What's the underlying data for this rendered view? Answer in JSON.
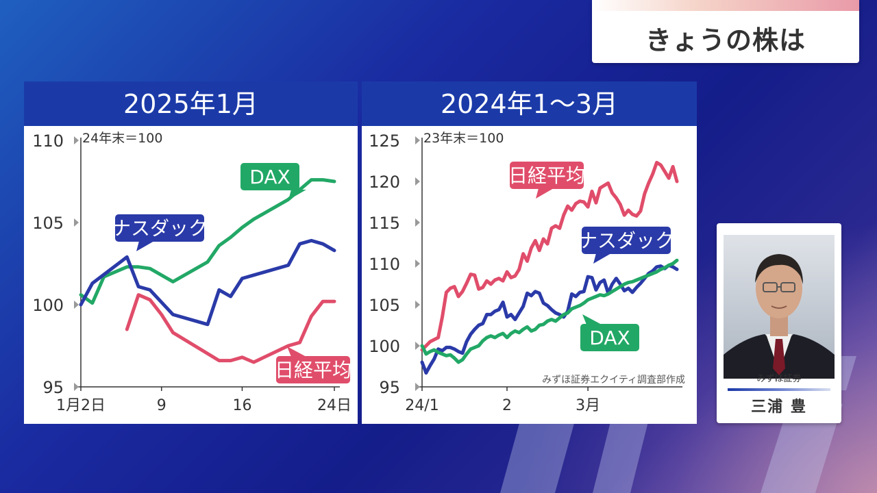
{
  "program_title": "きょうの株は",
  "chart_data": [
    {
      "type": "line",
      "title": "2025年1月",
      "note": "24年末＝100",
      "ylim": [
        95,
        110
      ],
      "yticks": [
        95,
        100,
        105,
        110
      ],
      "xlim": [
        2,
        24
      ],
      "xticks": [
        {
          "x": 2,
          "label": "1月2日"
        },
        {
          "x": 9,
          "label": "9"
        },
        {
          "x": 16,
          "label": "16"
        },
        {
          "x": 24,
          "label": "24日"
        }
      ],
      "series": [
        {
          "name": "DAX",
          "color": "#22a866",
          "x": [
            2,
            3,
            4,
            6,
            7,
            8,
            9,
            10,
            13,
            14,
            15,
            16,
            17,
            20,
            21,
            22,
            23,
            24
          ],
          "values": [
            100.6,
            100.1,
            101.7,
            102.3,
            102.3,
            102.2,
            101.8,
            101.4,
            102.6,
            103.6,
            104.1,
            104.7,
            105.2,
            106.4,
            107.0,
            107.6,
            107.6,
            107.5
          ]
        },
        {
          "name": "ナスダック",
          "color": "#2a3aa8",
          "x": [
            2,
            3,
            6,
            7,
            8,
            10,
            13,
            14,
            15,
            16,
            17,
            20,
            21,
            22,
            23,
            24
          ],
          "values": [
            100.0,
            101.3,
            102.9,
            101.1,
            100.9,
            99.4,
            98.8,
            100.9,
            100.5,
            101.6,
            101.8,
            102.4,
            103.7,
            103.9,
            103.7,
            103.3
          ]
        },
        {
          "name": "日経平均",
          "color": "#e04d6a",
          "x": [
            6,
            7,
            8,
            9,
            10,
            14,
            15,
            16,
            17,
            20,
            21,
            22,
            23,
            24
          ],
          "values": [
            98.5,
            100.6,
            100.3,
            99.4,
            98.3,
            96.6,
            96.6,
            96.8,
            96.5,
            97.5,
            97.7,
            99.3,
            100.2,
            100.2
          ]
        }
      ],
      "labels": [
        "DAX",
        "ナスダック",
        "日経平均"
      ]
    },
    {
      "type": "line",
      "title": "2024年1〜3月",
      "note": "23年末＝100",
      "source": "みずほ証券エクイティ調査部作成",
      "ylim": [
        95,
        125
      ],
      "yticks": [
        95,
        100,
        105,
        110,
        115,
        120,
        125
      ],
      "xlim": [
        0,
        63
      ],
      "xticks": [
        {
          "x": 0,
          "label": "24/1"
        },
        {
          "x": 21,
          "label": "2"
        },
        {
          "x": 41,
          "label": "3月"
        }
      ],
      "series": [
        {
          "name": "日経平均",
          "color": "#e04d6a",
          "x": [
            0,
            2,
            4,
            5,
            6,
            7,
            8,
            9,
            10,
            11,
            12,
            13,
            14,
            15,
            16,
            17,
            18,
            19,
            20,
            21,
            22,
            23,
            24,
            25,
            26,
            27,
            28,
            29,
            30,
            31,
            32,
            33,
            34,
            35,
            36,
            37,
            38,
            39,
            40,
            41,
            42,
            43,
            44,
            45,
            46,
            47,
            48,
            49,
            50,
            51,
            52,
            53,
            54,
            55,
            56,
            57,
            58,
            59,
            60,
            61,
            62,
            63
          ],
          "values": [
            99.5,
            100.5,
            101.0,
            103.5,
            106.5,
            107.0,
            107.2,
            106.0,
            106.6,
            107.6,
            108.7,
            108.6,
            106.9,
            107.1,
            107.9,
            107.5,
            108.0,
            108.2,
            107.9,
            109.0,
            108.3,
            108.5,
            109.3,
            111.2,
            110.3,
            111.9,
            112.8,
            111.6,
            113.0,
            112.4,
            114.3,
            114.6,
            114.3,
            115.9,
            117.0,
            116.5,
            117.3,
            117.6,
            117.5,
            116.9,
            118.8,
            117.4,
            119.2,
            119.5,
            119.8,
            118.6,
            118.0,
            117.2,
            115.9,
            116.5,
            116.0,
            115.8,
            116.4,
            118.5,
            119.8,
            120.9,
            122.3,
            122.0,
            121.2,
            120.4,
            121.8,
            120.0
          ]
        },
        {
          "name": "ナスダック",
          "color": "#2a3aa8",
          "x": [
            0,
            1,
            2,
            3,
            4,
            5,
            6,
            7,
            8,
            9,
            10,
            11,
            12,
            13,
            14,
            15,
            16,
            17,
            18,
            19,
            20,
            21,
            22,
            23,
            24,
            25,
            26,
            27,
            28,
            29,
            30,
            31,
            32,
            33,
            34,
            35,
            36,
            37,
            38,
            39,
            40,
            41,
            42,
            43,
            44,
            45,
            46,
            47,
            48,
            49,
            50,
            51,
            52,
            53,
            54,
            55,
            56,
            57,
            58,
            59,
            60,
            61,
            62,
            63
          ],
          "values": [
            98.0,
            96.7,
            97.6,
            98.4,
            99.6,
            99.4,
            99.8,
            99.8,
            99.6,
            99.3,
            99.1,
            100.5,
            101.4,
            102.0,
            102.5,
            102.7,
            103.8,
            103.8,
            104.2,
            104.4,
            105.3,
            103.5,
            103.8,
            103.2,
            104.0,
            104.8,
            106.4,
            106.1,
            106.6,
            106.4,
            105.2,
            104.9,
            104.4,
            104.0,
            103.8,
            103.5,
            104.2,
            106.3,
            106.0,
            106.5,
            106.6,
            108.4,
            108.3,
            106.8,
            107.7,
            108.0,
            106.4,
            107.5,
            108.2,
            107.5,
            106.7,
            107.0,
            106.5,
            107.1,
            107.6,
            108.2,
            108.8,
            109.1,
            109.6,
            109.7,
            109.4,
            109.8,
            109.6,
            109.3
          ]
        },
        {
          "name": "DAX",
          "color": "#22a866",
          "x": [
            0,
            1,
            2,
            3,
            4,
            5,
            6,
            7,
            8,
            9,
            10,
            11,
            12,
            13,
            14,
            15,
            16,
            17,
            18,
            19,
            20,
            21,
            22,
            23,
            24,
            25,
            26,
            27,
            28,
            29,
            30,
            31,
            32,
            33,
            34,
            35,
            36,
            37,
            38,
            39,
            40,
            41,
            42,
            43,
            44,
            45,
            46,
            47,
            48,
            49,
            50,
            51,
            52,
            53,
            54,
            55,
            56,
            57,
            58,
            59,
            60,
            61,
            62,
            63
          ],
          "values": [
            100.0,
            99.0,
            99.3,
            99.5,
            99.2,
            99.0,
            98.8,
            98.9,
            98.5,
            98.0,
            98.3,
            99.0,
            99.6,
            99.8,
            100.0,
            100.6,
            101.0,
            101.2,
            101.0,
            101.3,
            101.5,
            101.0,
            101.5,
            101.8,
            101.6,
            102.0,
            102.3,
            101.8,
            102.0,
            102.5,
            102.6,
            103.0,
            103.2,
            103.0,
            103.4,
            103.8,
            104.0,
            104.5,
            104.7,
            104.9,
            105.2,
            105.6,
            105.8,
            106.0,
            106.2,
            106.1,
            106.3,
            106.6,
            106.9,
            107.2,
            107.5,
            107.7,
            107.8,
            108.0,
            108.2,
            108.4,
            108.6,
            108.8,
            109.0,
            109.3,
            109.5,
            109.8,
            110.0,
            110.4
          ]
        }
      ],
      "labels": [
        "日経平均",
        "ナスダック",
        "DAX"
      ]
    }
  ],
  "commentator": {
    "affiliation": "みずほ証券",
    "name": "三浦 豊"
  },
  "colors": {
    "header_blue": "#1b3aa8",
    "nikkei": "#e04d6a",
    "nasdaq": "#2a3aa8",
    "dax": "#22a866"
  }
}
